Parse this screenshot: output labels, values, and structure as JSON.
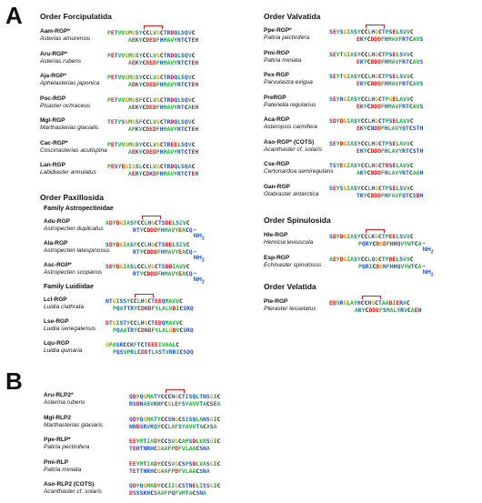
{
  "panel_a": {
    "label": "A",
    "forcipulatida": {
      "title": "Order Forcipulatida",
      "entries": [
        {
          "code": "Aam-RGP*",
          "species": "Asterias amurensis",
          "seq1": "PETVVGMGSYCCLVGCTRDQLSQVC",
          "seq2": "AEKYCDEDFHMAVYRTCTEH"
        },
        {
          "code": "Aru-RGP*",
          "species": "Asterias rubens",
          "seq1": "PETVVGMGSYCCLVGCTRDQLSQVC",
          "seq2": "AEKYCDEDFHMAVYRTCTEH"
        },
        {
          "code": "Aja-RGP*",
          "species": "Aphelasterias japonica",
          "seq1": "PETVVGMGSYCCLVGCTRDQLSQVC",
          "seq2": "ADKYCDEDFHMAVYRTCTEH"
        },
        {
          "code": "Poc-RGP",
          "species": "Pisaster ochraceus",
          "seq1": "PETVVGMGSFCCLVGCTRDQLSQVC",
          "seq2": "AEKYCDEDFHMAVYRTCAEH"
        },
        {
          "code": "Mgl-RGP",
          "species": "Marthasterias glacialis",
          "seq1": "TETYSGMGSFCCLVGCTRDQLSQVC",
          "seq2": "APKYCDEDFHMAVYRTCTEH"
        },
        {
          "code": "Cac-RGP*",
          "species": "Coscinasterias acutispina",
          "seq1": "PETVVGMGSYCCLVGCTREELSQVC",
          "seq2": "AEKYCDEDFHMAVYRTCTEH"
        },
        {
          "code": "Lan-RGP",
          "species": "Labidiaster annulatus",
          "seq1": "PESYEGIGSLCCLVGCTRDQLSQAC",
          "seq2": "AERYCDKDFHMAVYRTCTEH"
        }
      ]
    },
    "paxillosida": {
      "title": "Order Paxillosida",
      "family_astropectinidae": "Family Astropectinidae",
      "astro_entries": [
        {
          "code": "Adu-RGP",
          "species": "Astropecten duplicatus",
          "seq1": "ADYDGIASFCCLHGCTSDELSIVC",
          "seq2": "RTYCDDDFHMAVYEACQ",
          "tail": "–NH",
          "sub": "2"
        },
        {
          "code": "Ala-RGP",
          "species": "Astropecten latespinosus",
          "seq1": "SDYDGIASFCCLHGCTSDELSIVC",
          "seq2": "RTYCDDDFHMAVYEACQ",
          "tail": "–NH",
          "sub": "2"
        },
        {
          "code": "Asc-RGP*",
          "species": "Astropecten scoparius",
          "seq1": "SDYDGIASLCCLVGCTSDDIAVVC",
          "seq2": "RTYCDDDFHMAVYEACQ",
          "tail": "–NH",
          "sub": "2"
        }
      ],
      "family_luidiidae": "Family Luidiidae",
      "luidia_entries": [
        {
          "code": "Lcl-RGP",
          "species": "Luidia clathrata",
          "seq1": "NTGISSYCCLHGCTEEQMAVVC",
          "seq2": "PQATTRYCDNDFYLALVDICSRQ"
        },
        {
          "code": "Lse-RGP",
          "species": "Luidia senegalensis",
          "seq1": "DTGISTYCCLHGCTEDQMAVVC",
          "seq2": "PQAATRYCDNDFYLALGDVCSRQ"
        },
        {
          "code": "Lqu-RGP",
          "species": "Luidia quinaria",
          "seq1": "GPASRCCKFTCTEEEIVAALC",
          "seq2": "PQSVPRLCDDTLASTVRRICSQQ"
        }
      ]
    },
    "valvatida": {
      "title": "Order Valvatida",
      "entries": [
        {
          "code": "Ppe-RGP*",
          "species": "Patiria pectinifera",
          "seq1": "SEYSGIASYCCLHGCTPSELSVVC",
          "seq2": "EKYCDDDFHMAVFRTCAVS"
        },
        {
          "code": "Pmi-RGP",
          "species": "Patiria miniata",
          "seq1": "SEYTGIASYCCLHGCTPSELSVVC",
          "seq2": "EKYCDDDFHMAVFRTCAVS"
        },
        {
          "code": "Pex-RGP",
          "species": "Parvulastra exigua",
          "seq1": "SEYTGIASYCCLHGCTPSELSVVC",
          "seq2": "EKYCDDDFHMAVFRTCAVS"
        },
        {
          "code": "PreRGP",
          "species": "Pateriella regularius",
          "seq1": "SEYNGIASYCCLHGCTPGELAVVC",
          "seq2": "EKYCDDDFHMAVFRTCAVS"
        },
        {
          "code": "Aca-RGP",
          "species": "Asteropsis carinifera",
          "seq1": "SDYDGIASYCCLHGCTPSELAVVC",
          "seq2": "EKYCNDDFHLAVYQTCSTH"
        },
        {
          "code": "Aso-RGP* (COTS)",
          "species": "Acanthaster cf. solaris",
          "seq1": "SEYDGIASYCCLHGCTPSELAVVC",
          "seq2": "EKYCDDDFHLAVYRTCSTH"
        },
        {
          "code": "Cse-RGP",
          "species": "Certonardoa semiregularis",
          "seq1": "TSYEGIASYCCLHGCTDSELAVVC",
          "seq2": "AKYCDDDFHLAVYRTCAAH"
        },
        {
          "code": "Gan-RGP",
          "species": "Glabraster antarctica",
          "seq1": "SEYSGIASYCCLHGCTPSELSVVC",
          "seq2": "TKYCDDDFHFAVFQTCSDH"
        }
      ]
    },
    "spinulosida": {
      "title": "Order Spinulosida",
      "entries": [
        {
          "code": "Hle-RGP",
          "species": "Henricia leviuscula",
          "seq1": "SDYDGIASYCCLKGCTPEELSVVC",
          "seq2": "PQRYCDGDFHHQVYWTCA",
          "tail": "–NH",
          "sub": "2"
        },
        {
          "code": "Esp-RGP",
          "species": "Echinaster spinulosus",
          "seq1": "AEYDGIASYCCLQGCTPDELSVVC",
          "seq2": "PQRICDGNFHHQVYWTCA",
          "tail": "–NH",
          "sub": "2"
        }
      ]
    },
    "velatida": {
      "title": "Order Velatida",
      "entries": [
        {
          "code": "Pte-RGP",
          "species": "Pteraster tesselatus",
          "seq1": "EDVRGLAYHCCHGCTAADIERAC",
          "seq2": "AKYCDDEFSMALYRVCAEH"
        }
      ]
    }
  },
  "panel_b": {
    "label": "B",
    "entries": [
      {
        "code": "Aru-RLP2*",
        "species": "Asterina rubens",
        "seq1": "QDYQGMATYCCCNGCTISQLTNSGIC",
        "seq2": "RSDHASVKHFCGLEFSYAVVTACSEA"
      },
      {
        "code": "Mgl-RLP2",
        "species": "Marthasterias glaciaris",
        "seq1": "QDYQGMATYCCSNGCSISQLANSGIC",
        "seq2": "NNDSRVKQYCCLAFSYAVVTACASA"
      },
      {
        "code": "Ppe-RLP*",
        "species": "Patiria pectinifera",
        "seq1": "EEYMTIADYCCSVGCAPSDLVASGIC",
        "seq2": "TEHTNRHCGAAFPDFVLAACSNA"
      },
      {
        "code": "Pmi-RLP",
        "species": "Patiria miniata",
        "seq1": "EEYMTIADYCCSVGCSPSDLVASGIC",
        "seq2": "TETTNRHCGAAFPDFVLAACSNA"
      },
      {
        "code": "Aso-RLP2 (COTS)",
        "species": "Acanthaster cf. solaris",
        "seq1": "QDYQGMADYCCIIGCSTNELISSGIC",
        "seq2": "DSSSKHCSAAFPQFVMTACSNA"
      }
    ]
  }
}
